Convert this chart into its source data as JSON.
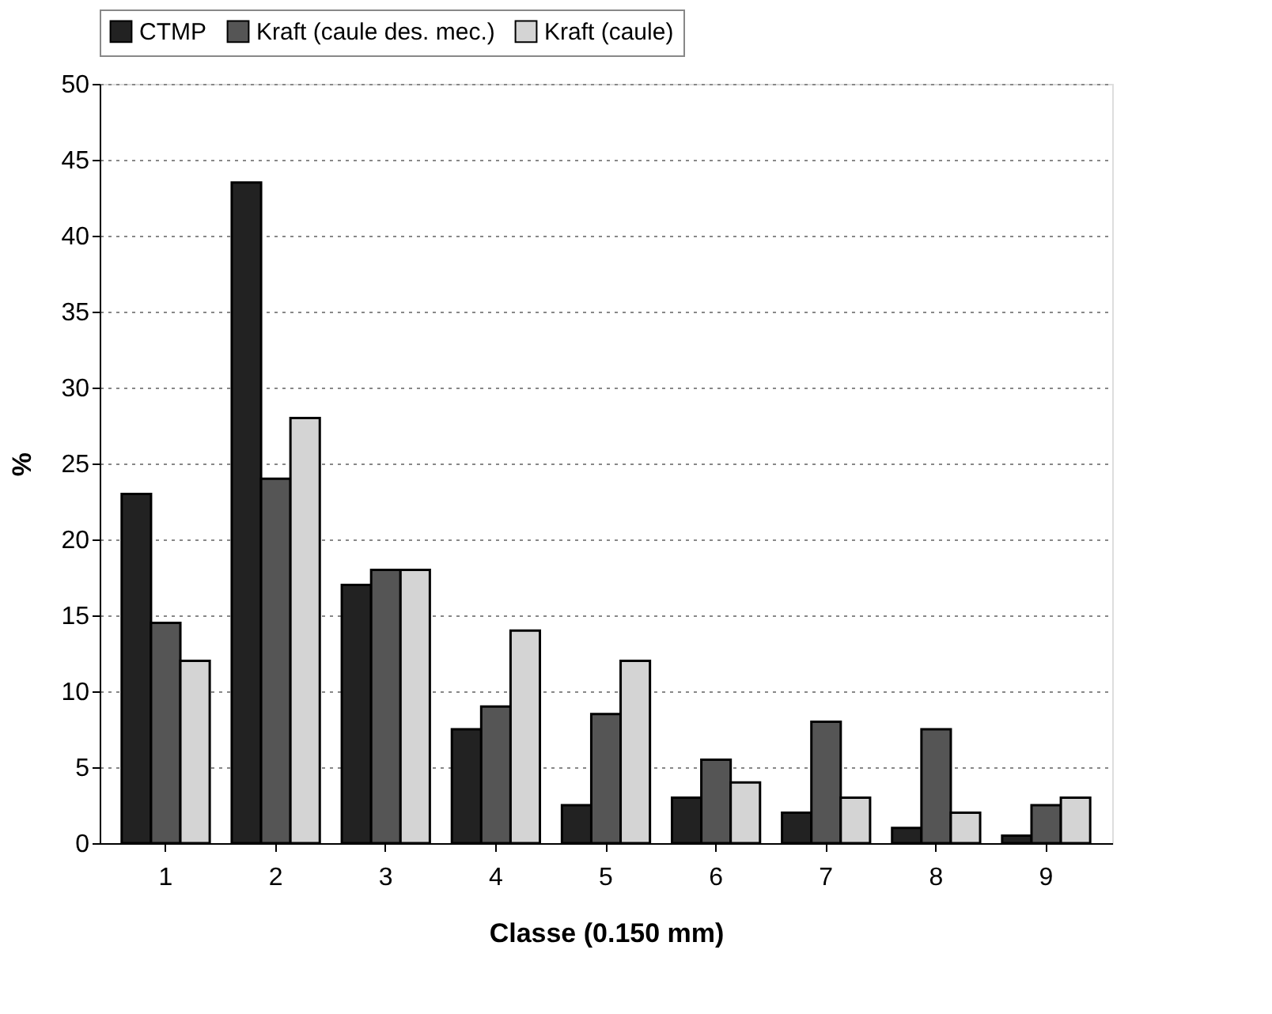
{
  "chart_data": {
    "type": "bar",
    "xlabel": "Classe (0.150 mm)",
    "ylabel": "%",
    "categories": [
      "1",
      "2",
      "3",
      "4",
      "5",
      "6",
      "7",
      "8",
      "9"
    ],
    "series": [
      {
        "name": "CTMP",
        "color": "#222222",
        "values": [
          23,
          43.5,
          17,
          7.5,
          2.5,
          3,
          2,
          1,
          0.5
        ]
      },
      {
        "name": "Kraft (caule des. mec.)",
        "color": "#555555",
        "values": [
          14.5,
          24,
          18,
          9,
          8.5,
          5.5,
          8,
          7.5,
          2.5
        ]
      },
      {
        "name": "Kraft (caule)",
        "color": "#d4d4d4",
        "values": [
          12,
          28,
          18,
          14,
          12,
          4,
          3,
          2,
          3
        ]
      }
    ],
    "ylim": [
      0,
      50
    ],
    "yticks": [
      0,
      5,
      10,
      15,
      20,
      25,
      30,
      35,
      40,
      45,
      50
    ],
    "grid": "y",
    "legend": "top"
  }
}
